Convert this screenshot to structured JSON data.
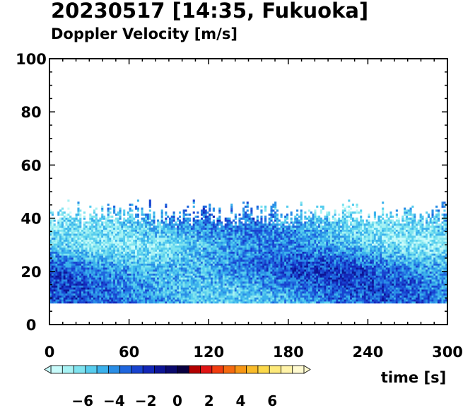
{
  "title": "20230517 [14:35, Fukuoka]",
  "subtitle": "Doppler Velocity [m/s]",
  "chart_data": {
    "type": "heatmap",
    "title": "20230517 [14:35, Fukuoka]",
    "subtitle": "Doppler Velocity [m/s]",
    "xlabel": "time [s]",
    "ylabel": "",
    "xlim": [
      0,
      300
    ],
    "ylim": [
      0,
      100
    ],
    "xticks": [
      0,
      60,
      120,
      180,
      240,
      300
    ],
    "yticks": [
      0,
      20,
      40,
      60,
      80,
      100
    ],
    "data_height_range": [
      8,
      47
    ],
    "dominant_velocity_by_height": [
      {
        "height": 10,
        "velocity": -4.5
      },
      {
        "height": 20,
        "velocity": -4.0
      },
      {
        "height": 30,
        "velocity": -5.5
      },
      {
        "height": 40,
        "velocity": -5.0
      }
    ],
    "colorbar": {
      "min": -8,
      "max": 8,
      "ticks": [
        -6,
        -4,
        -2,
        0,
        2,
        4,
        6
      ],
      "colors": [
        "#c8fbfb",
        "#a7f2f4",
        "#7fe3ef",
        "#57cdee",
        "#3bb1ec",
        "#2a8ee6",
        "#1f66de",
        "#1843cf",
        "#1327b7",
        "#0d1596",
        "#0b0a6e",
        "#0a0040",
        "#b30000",
        "#e01515",
        "#f23d10",
        "#f56a10",
        "#f79614",
        "#f9bb2a",
        "#fbd84a",
        "#fde97a",
        "#fff3a8",
        "#fffad0"
      ]
    }
  }
}
